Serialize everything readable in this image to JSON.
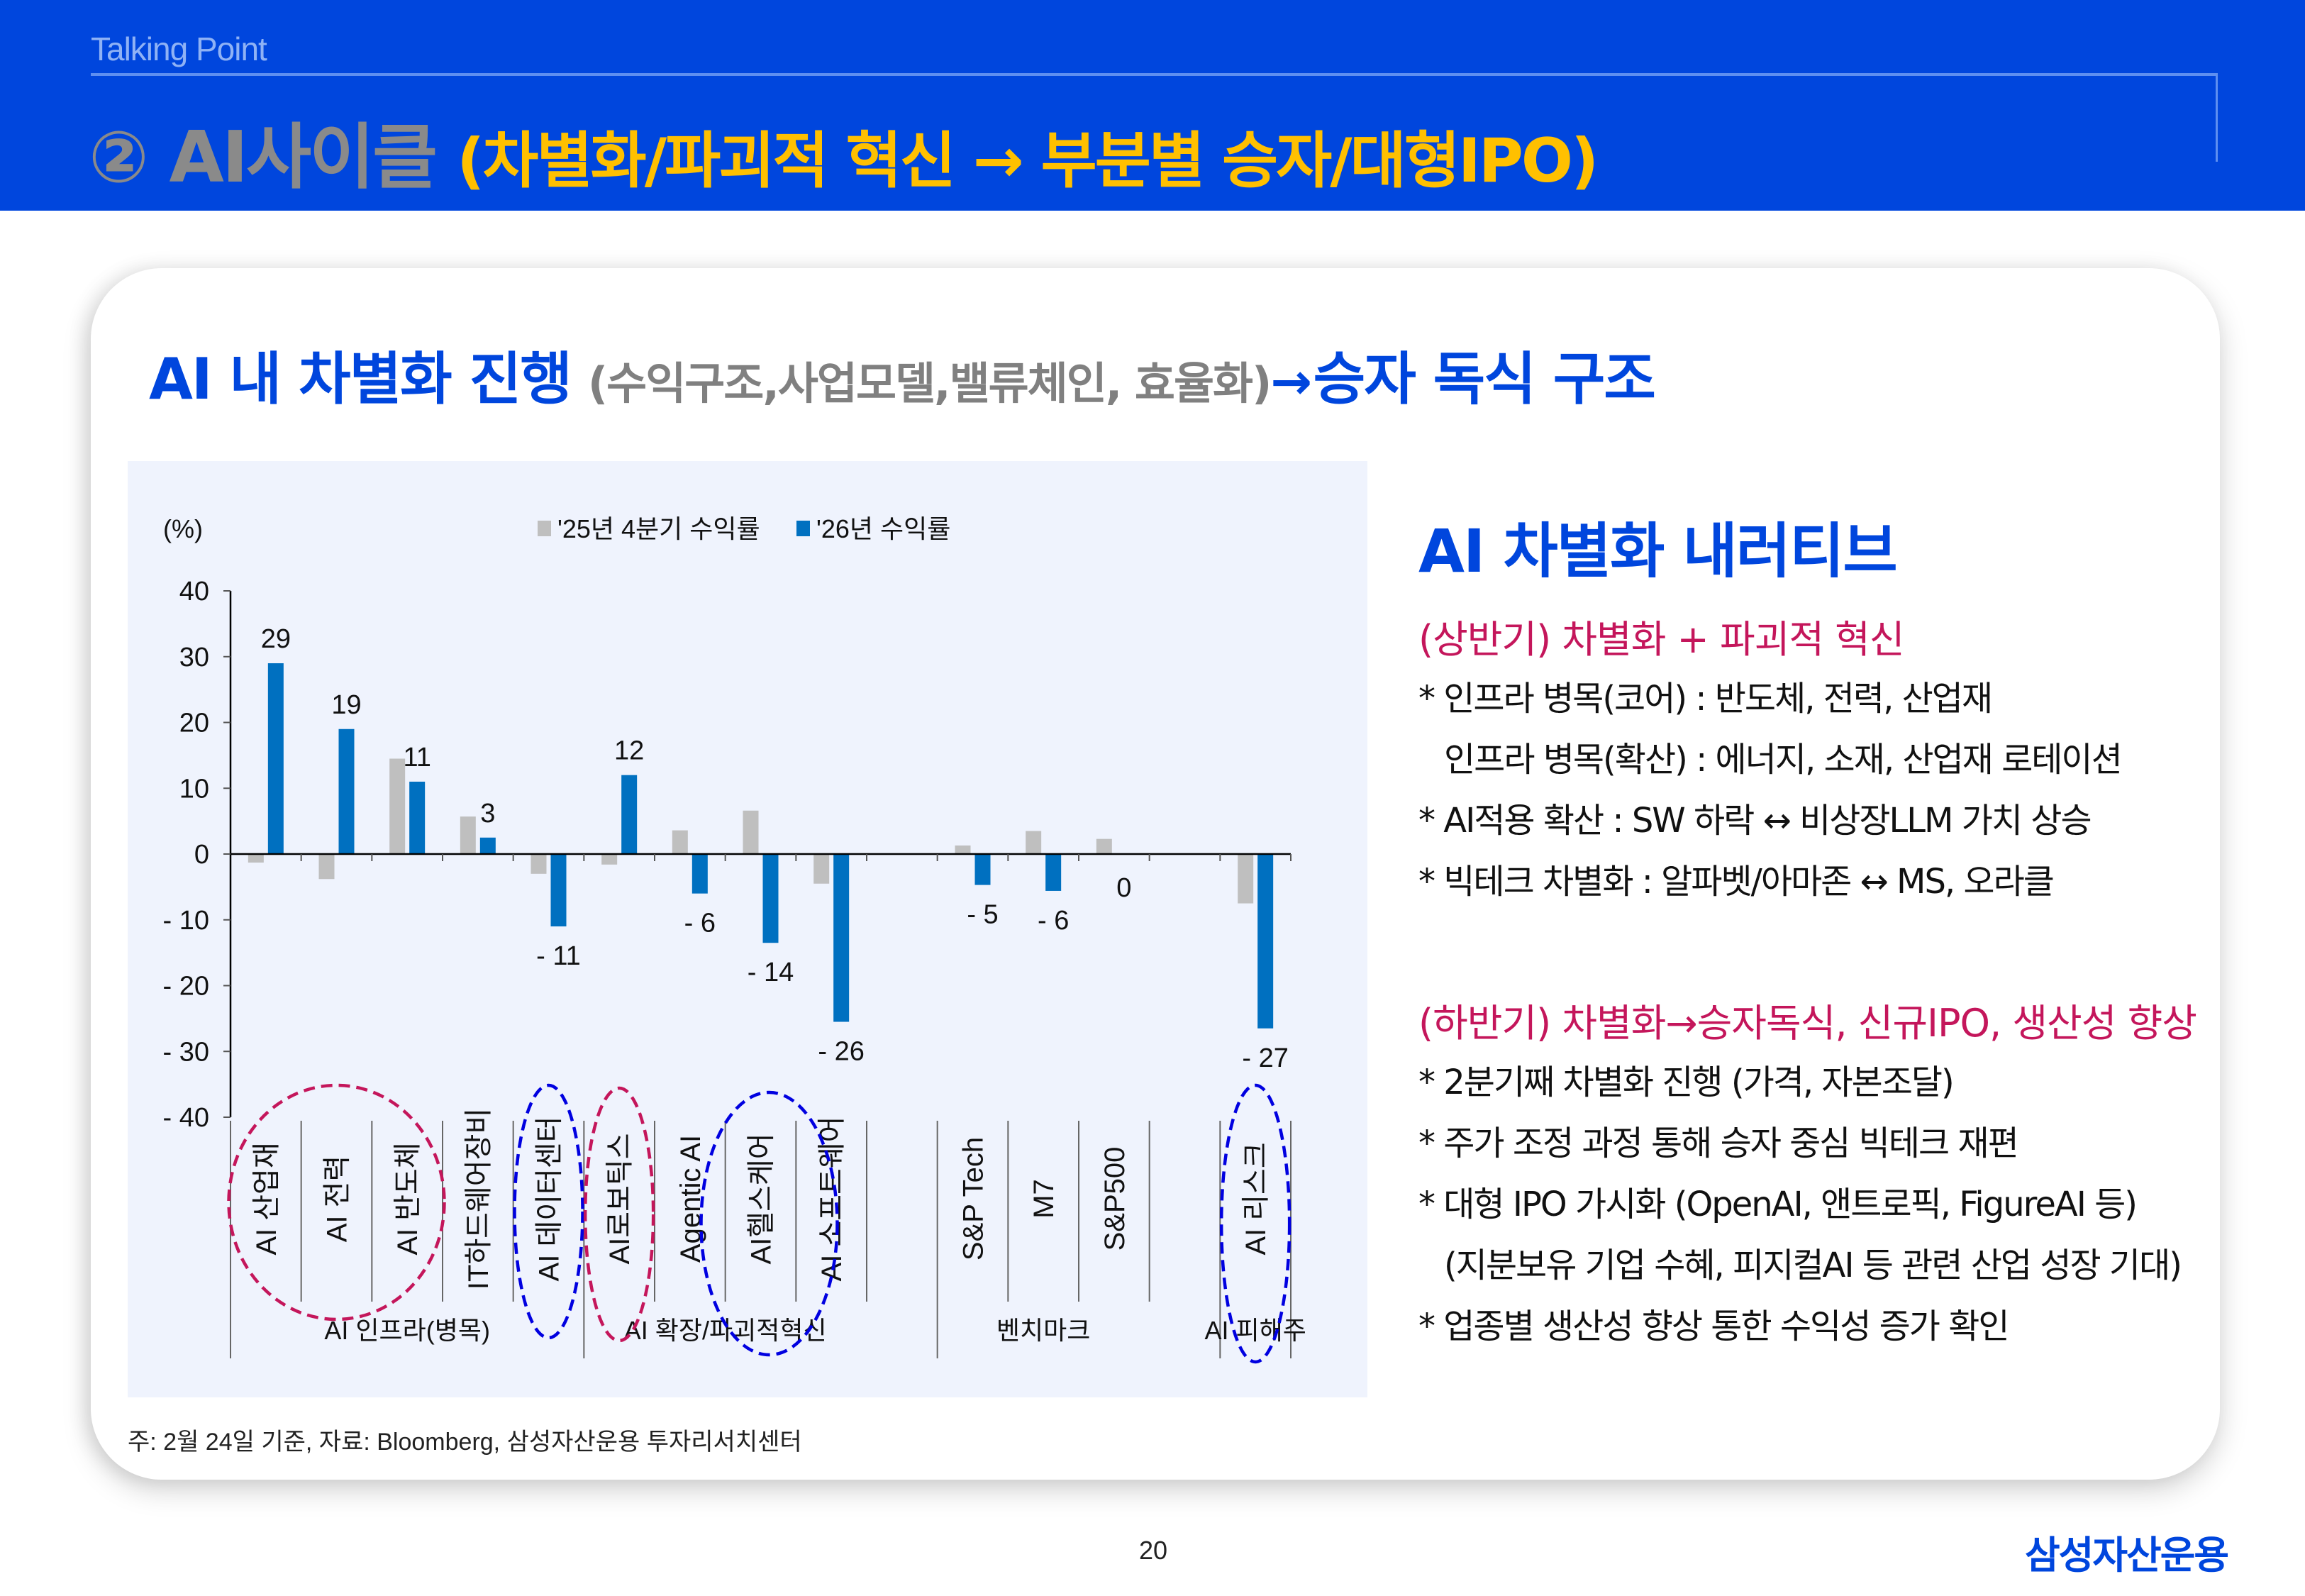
{
  "header": {
    "kicker": "Talking Point",
    "title_main": "② AI사이클",
    "title_sub": "(차별화/파괴적 혁신 → 부분별 승자/대형IPO)"
  },
  "headline": {
    "main": "AI 내 차별화  진행",
    "detail": "(수익구조,사업모델,밸류체인, 효율화)",
    "arrow": "→",
    "result": "승자 독식 구조"
  },
  "chart_data": {
    "type": "bar",
    "title": "",
    "ylabel": "(%)",
    "xlabel": "",
    "ylim": [
      -40,
      40
    ],
    "yticks": [
      40,
      30,
      20,
      10,
      0,
      -10,
      -20,
      -30,
      -40
    ],
    "grid": false,
    "legend_position": "top",
    "categories": [
      "AI 산업재",
      "AI 전력",
      "AI 반도체",
      "IT하드웨어장비",
      "AI 데이터센터",
      "AI로보틱스",
      "Agentic AI",
      "AI헬스케어",
      "AI 소프트웨어",
      "",
      "S&P Tech",
      "M7",
      "S&P500",
      "",
      "AI 리스크"
    ],
    "series": [
      {
        "name": "'25년 4분기 수익률",
        "color": "#BFBFBF",
        "values": [
          -1.3,
          -3.8,
          14.5,
          5.7,
          -3.0,
          -1.6,
          3.6,
          6.6,
          -4.5,
          null,
          1.3,
          3.5,
          2.3,
          null,
          -7.5
        ]
      },
      {
        "name": "'26년 수익률",
        "color": "#0070C0",
        "values": [
          29,
          19,
          11,
          2.5,
          -11,
          12,
          -6,
          -13.5,
          -25.5,
          null,
          -4.7,
          -5.6,
          0,
          null,
          -26.5
        ]
      }
    ],
    "data_labels": [
      "29",
      "19",
      "11",
      "3",
      "-11",
      "12",
      "-6",
      "-14",
      "-26",
      "",
      "-5",
      "-6",
      "0",
      "",
      "-27"
    ],
    "groups": [
      {
        "label": "AI 인프라(병목)",
        "from": 0,
        "to": 4
      },
      {
        "label": "AI 확장/파괴적혁신",
        "from": 5,
        "to": 8
      },
      {
        "label": "벤치마크",
        "from": 10,
        "to": 12
      },
      {
        "label": "AI 피해주",
        "from": 14,
        "to": 14
      }
    ],
    "annotations": [
      {
        "type": "dashed-ellipse",
        "color": "#C4165B",
        "covers": [
          "AI 산업재",
          "AI 전력",
          "AI 반도체"
        ]
      },
      {
        "type": "dashed-ellipse",
        "color": "#0000E0",
        "covers": [
          "AI 데이터센터"
        ]
      },
      {
        "type": "dashed-ellipse",
        "color": "#C4165B",
        "covers": [
          "AI로보틱스"
        ]
      },
      {
        "type": "dashed-ellipse",
        "color": "#0000E0",
        "covers": [
          "AI헬스케어",
          "AI 소프트웨어"
        ]
      },
      {
        "type": "dashed-ellipse",
        "color": "#0000E0",
        "covers": [
          "AI 리스크"
        ]
      }
    ]
  },
  "chart_text": {
    "unit": "(%)",
    "legend_1": "'25년 4분기 수익률",
    "legend_2": "'26년 수익률"
  },
  "footnote": "주: 2월 24일 기준, 자료: Bloomberg, 삼성자산운용 투자리서치센터",
  "narrative": {
    "title": "AI 차별화 내러티브",
    "first_half": {
      "heading": "(상반기) 차별화 + 파괴적 혁신",
      "items": [
        "* 인프라 병목(코어) : 반도체, 전력, 산업재",
        "인프라 병목(확산) : 에너지, 소재, 산업재 로테이션",
        "* AI적용 확산 : SW 하락 ↔ 비상장LLM 가치 상승",
        "* 빅테크 차별화 : 알파벳/아마존 ↔ MS, 오라클"
      ]
    },
    "second_half": {
      "heading": "(하반기) 차별화→승자독식, 신규IPO, 생산성 향상",
      "items": [
        "* 2분기째 차별화 진행 (가격, 자본조달)",
        "* 주가 조정 과정 통해 승자 중심 빅테크 재편",
        "* 대형 IPO 가시화 (OpenAI, 앤트로픽, FigureAI 등)",
        "(지분보유 기업 수혜, 피지컬AI 등 관련 산업 성장 기대)",
        "* 업종별 생산성 향상 통한 수익성 증가 확인"
      ]
    }
  },
  "footer": {
    "page": "20",
    "brand": "삼성자산운용"
  }
}
